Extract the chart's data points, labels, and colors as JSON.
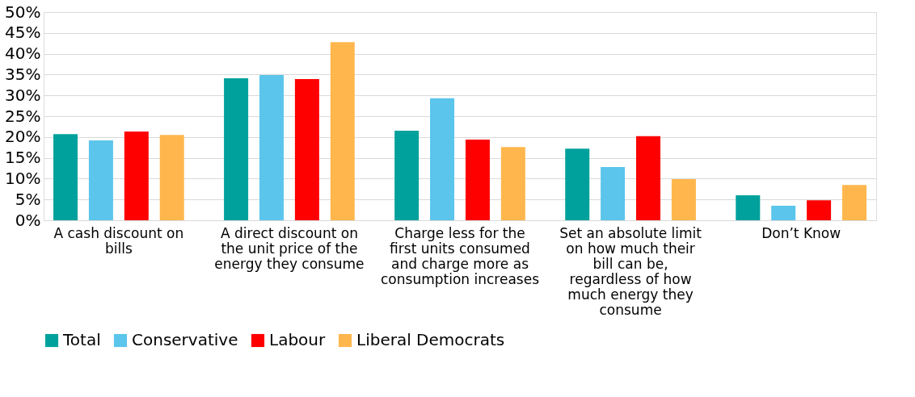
{
  "chart_data": {
    "type": "bar",
    "categories": [
      "A cash discount on bills",
      "A direct discount on the unit price of the energy they consume",
      "Charge less for the first units consumed and charge more as consumption increases",
      "Set an absolute limit on how much their bill can be, regardless of how much energy they consume",
      "Don’t Know"
    ],
    "series": [
      {
        "name": "Total",
        "color": "#00a19c",
        "values": [
          20.7,
          34.1,
          21.5,
          17.2,
          6.0
        ]
      },
      {
        "name": "Conservative",
        "color": "#5bc5ec",
        "values": [
          19.2,
          34.9,
          29.3,
          12.8,
          3.5
        ]
      },
      {
        "name": "Labour",
        "color": "#ff0000",
        "values": [
          21.3,
          33.9,
          19.4,
          20.2,
          4.8
        ]
      },
      {
        "name": "Liberal Democrats",
        "color": "#ffb74d",
        "values": [
          20.5,
          42.8,
          17.6,
          9.9,
          8.5
        ]
      }
    ],
    "ylim": [
      0,
      50
    ],
    "yticks": [
      {
        "value": 0,
        "label": "0%"
      },
      {
        "value": 5,
        "label": "5%"
      },
      {
        "value": 10,
        "label": "10%"
      },
      {
        "value": 15,
        "label": "15%"
      },
      {
        "value": 20,
        "label": "20%"
      },
      {
        "value": 25,
        "label": "25%"
      },
      {
        "value": 30,
        "label": "30%"
      },
      {
        "value": 35,
        "label": "35%"
      },
      {
        "value": 40,
        "label": "40%"
      },
      {
        "value": 45,
        "label": "45%"
      },
      {
        "value": 50,
        "label": "50%"
      }
    ],
    "grid": "y",
    "legend": "bottom"
  }
}
